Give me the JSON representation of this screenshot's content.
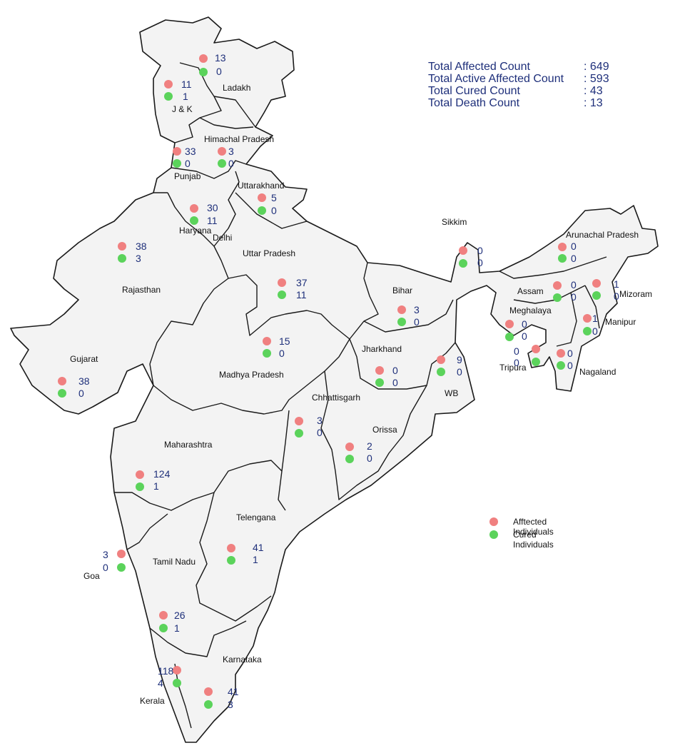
{
  "totals": {
    "affected_label": "Total Affected Count",
    "affected_value": ": 649",
    "active_label": "Total Active Affected Count",
    "active_value": ": 593",
    "cured_label": "Total Cured Count",
    "cured_value": ": 43",
    "death_label": "Total Death Count",
    "death_value": ": 13"
  },
  "legend": {
    "affected": "Afftected Individuals",
    "cured": "Cured Individuals"
  },
  "colors": {
    "affected": "#f08080",
    "cured": "#5bd35b",
    "numbers": "#1e2f7a"
  },
  "states": [
    {
      "name": "Ladakh",
      "affected": "13",
      "cured": "0"
    },
    {
      "name": "J & K",
      "affected": "11",
      "cured": "1"
    },
    {
      "name": "Himachal Pradesh",
      "affected": "3",
      "cured": "0"
    },
    {
      "name": "Punjab",
      "affected": "33",
      "cured": "0"
    },
    {
      "name": "Uttarakhand",
      "affected": "5",
      "cured": "0"
    },
    {
      "name": "Haryana",
      "affected": "30",
      "cured": "11"
    },
    {
      "name": "Delhi",
      "affected": "",
      "cured": ""
    },
    {
      "name": "Rajasthan",
      "affected": "38",
      "cured": "3"
    },
    {
      "name": "Uttar Pradesh",
      "affected": "37",
      "cured": "11"
    },
    {
      "name": "Sikkim",
      "affected": "0",
      "cured": "0"
    },
    {
      "name": "Arunachal Pradesh",
      "affected": "0",
      "cured": "0"
    },
    {
      "name": "Assam",
      "affected": "0",
      "cured": "0"
    },
    {
      "name": "Mizoram",
      "affected": "1",
      "cured": "0"
    },
    {
      "name": "Bihar",
      "affected": "3",
      "cured": "0"
    },
    {
      "name": "Meghalaya",
      "affected": "0",
      "cured": "0"
    },
    {
      "name": "Manipur",
      "affected": "1",
      "cured": "0"
    },
    {
      "name": "Madhya Pradesh",
      "affected": "15",
      "cured": "0"
    },
    {
      "name": "Gujarat",
      "affected": "38",
      "cured": "0"
    },
    {
      "name": "Jharkhand",
      "affected": "0",
      "cured": "0"
    },
    {
      "name": "WB",
      "affected": "9",
      "cured": "0"
    },
    {
      "name": "Tripura",
      "affected": "0",
      "cured": "0"
    },
    {
      "name": "Nagaland",
      "affected": "0",
      "cured": "0"
    },
    {
      "name": "Chhattisgarh",
      "affected": "3",
      "cured": "0"
    },
    {
      "name": "Orissa",
      "affected": "2",
      "cured": "0"
    },
    {
      "name": "Maharashtra",
      "affected": "124",
      "cured": "1"
    },
    {
      "name": "Telengana",
      "affected": "41",
      "cured": "1"
    },
    {
      "name": "Goa",
      "affected": "3",
      "cured": "0"
    },
    {
      "name": "Tamil Nadu",
      "affected": "26",
      "cured": "1"
    },
    {
      "name": "Kerala",
      "affected": "118",
      "cured": "4"
    },
    {
      "name": "Karnataka",
      "affected": "41",
      "cured": "3"
    }
  ]
}
